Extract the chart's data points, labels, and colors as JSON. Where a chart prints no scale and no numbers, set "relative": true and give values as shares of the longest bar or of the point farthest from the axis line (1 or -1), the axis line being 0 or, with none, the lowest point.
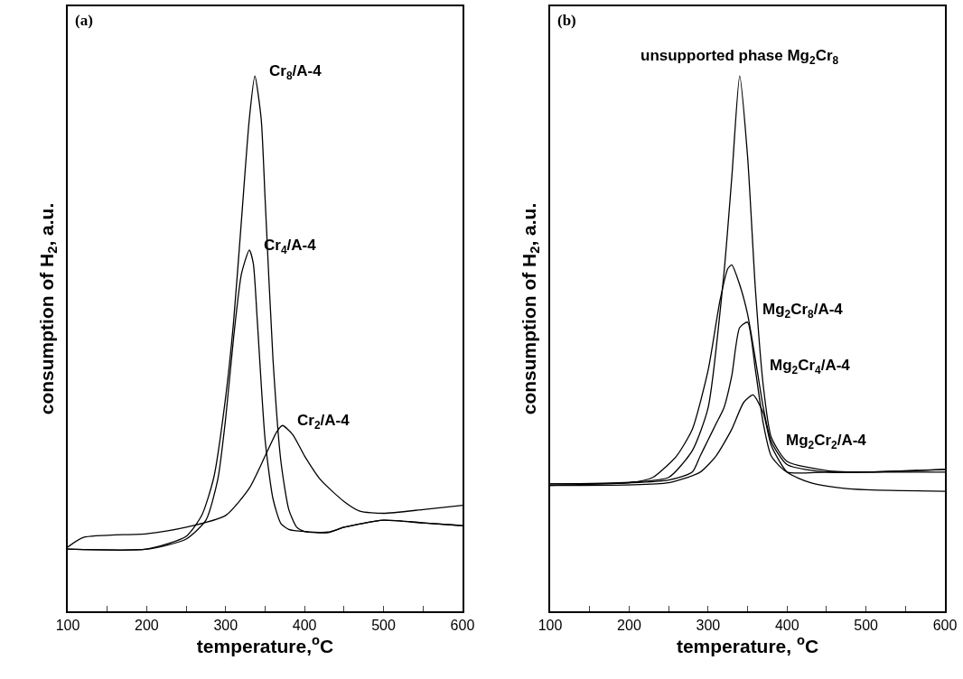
{
  "chart_data": [
    {
      "type": "line",
      "relative": true,
      "xlabel": "temperature,$^{o}$C",
      "ylabel": "consumption of H$_{2}$, a.u.",
      "xlim": [
        100,
        600
      ],
      "xticks": [
        100,
        {
          "value": 150,
          "label": null
        },
        200,
        {
          "value": 250,
          "label": null
        },
        300,
        {
          "value": 350,
          "label": null
        },
        400,
        {
          "value": 450,
          "label": null
        },
        500,
        {
          "value": 550,
          "label": null
        },
        600
      ],
      "tick_labels": "x",
      "annotations": [
        "(a)",
        {
          "text": "Cr$_{8}$/A-4",
          "x": 337,
          "y": 1.0
        },
        {
          "text": "Cr$_{4}$/A-4",
          "x": 330,
          "y": 0.675
        },
        {
          "text": "Cr$_{2}$/A-4",
          "x": 372,
          "y": 0.347
        }
      ],
      "series": [
        {
          "color": "#000000",
          "x": [
            100,
            200,
            250,
            270,
            285,
            300,
            310,
            320,
            330,
            337,
            345,
            350,
            360,
            370,
            380,
            390,
            400,
            430,
            450,
            500,
            550,
            600
          ],
          "values": [
            0.116,
            0.116,
            0.14,
            0.18,
            0.25,
            0.4,
            0.54,
            0.73,
            0.92,
            1.0,
            0.92,
            0.77,
            0.47,
            0.28,
            0.19,
            0.157,
            0.149,
            0.147,
            0.157,
            0.17,
            0.165,
            0.16
          ]
        },
        {
          "color": "#000000",
          "x": [
            100,
            200,
            250,
            275,
            290,
            300,
            310,
            320,
            330,
            335,
            340,
            350,
            360,
            370,
            380,
            400,
            430,
            450,
            500,
            550,
            600
          ],
          "values": [
            0.116,
            0.116,
            0.135,
            0.17,
            0.246,
            0.36,
            0.51,
            0.63,
            0.675,
            0.65,
            0.545,
            0.32,
            0.21,
            0.164,
            0.153,
            0.149,
            0.148,
            0.157,
            0.17,
            0.165,
            0.16
          ]
        },
        {
          "color": "#000000",
          "x": [
            100,
            120,
            200,
            250,
            300,
            330,
            350,
            365,
            372,
            385,
            400,
            420,
            450,
            470,
            500,
            550,
            600
          ],
          "values": [
            0.12,
            0.138,
            0.145,
            0.157,
            0.179,
            0.23,
            0.29,
            0.336,
            0.347,
            0.33,
            0.29,
            0.246,
            0.205,
            0.187,
            0.183,
            0.19,
            0.198
          ]
        }
      ]
    },
    {
      "type": "line",
      "relative": true,
      "xlabel": "temperature, $^{o}$C",
      "ylabel": "consumption of H$_{2}$, a.u.",
      "xlim": [
        100,
        600
      ],
      "xticks": [
        100,
        {
          "value": 150,
          "label": null
        },
        200,
        {
          "value": 250,
          "label": null
        },
        300,
        {
          "value": 350,
          "label": null
        },
        400,
        {
          "value": 450,
          "label": null
        },
        500,
        {
          "value": 550,
          "label": null
        },
        600
      ],
      "tick_labels": "x",
      "annotations": [
        "(b)",
        {
          "text": "unsupported phase Mg$_{2}$Cr$_{8}$",
          "x": 340,
          "y": 1.0
        },
        {
          "text": "Mg$_{2}$Cr$_{8}$/A-4",
          "x": 350,
          "y": 0.555
        },
        {
          "text": "Mg$_{2}$Cr$_{4}$/A-4",
          "x": 360,
          "y": 0.45
        },
        {
          "text": "Mg$_{2}$Cr$_{2}$/A-4",
          "x": 380,
          "y": 0.31
        }
      ],
      "series": [
        {
          "color": "#000000",
          "x": [
            100,
            200,
            250,
            280,
            300,
            320,
            330,
            340,
            350,
            360,
            370,
            380,
            400,
            450,
            500,
            600
          ],
          "values": [
            0.238,
            0.241,
            0.25,
            0.3,
            0.38,
            0.63,
            0.81,
            1.0,
            0.85,
            0.6,
            0.42,
            0.325,
            0.28,
            0.263,
            0.26,
            0.265
          ]
        },
        {
          "color": "#000000",
          "x": [
            100,
            200,
            230,
            260,
            280,
            300,
            315,
            325,
            330,
            340,
            350,
            360,
            370,
            380,
            400,
            450,
            600
          ],
          "values": [
            0.238,
            0.24,
            0.25,
            0.29,
            0.34,
            0.45,
            0.58,
            0.64,
            0.647,
            0.61,
            0.555,
            0.47,
            0.38,
            0.317,
            0.274,
            0.26,
            0.265
          ]
        },
        {
          "color": "#000000",
          "x": [
            100,
            250,
            280,
            290,
            300,
            310,
            320,
            330,
            340,
            350,
            360,
            370,
            380,
            400,
            450,
            600
          ],
          "values": [
            0.235,
            0.245,
            0.26,
            0.29,
            0.32,
            0.35,
            0.38,
            0.44,
            0.53,
            0.54,
            0.45,
            0.35,
            0.29,
            0.26,
            0.26,
            0.26
          ]
        },
        {
          "color": "#000000",
          "x": [
            100,
            250,
            290,
            310,
            330,
            345,
            357,
            370,
            380,
            400,
            430,
            470,
            500,
            600
          ],
          "values": [
            0.235,
            0.24,
            0.26,
            0.29,
            0.34,
            0.39,
            0.404,
            0.37,
            0.31,
            0.26,
            0.24,
            0.23,
            0.227,
            0.224
          ]
        }
      ]
    }
  ]
}
